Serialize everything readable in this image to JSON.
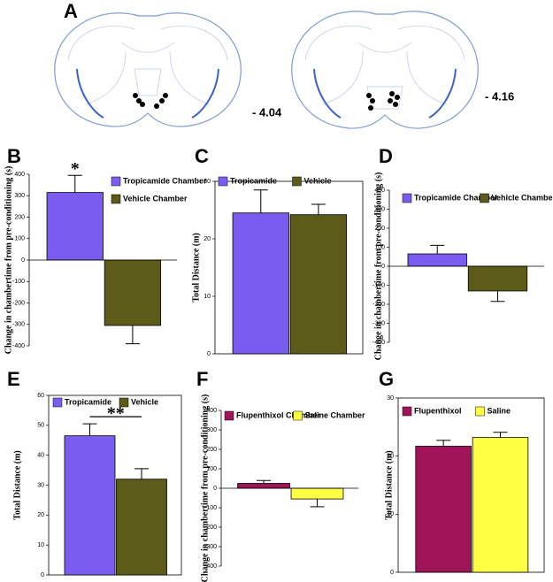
{
  "figure_a": {
    "label": "A",
    "sections": [
      "- 4.04",
      "- 4.16"
    ]
  },
  "chart_data": [
    {
      "type": "bar",
      "label": "B",
      "ylabel": "Change in chambertime from pre-conditioning (s)",
      "ylim": [
        -400,
        400
      ],
      "yticks": [
        -400,
        -300,
        -200,
        -100,
        0,
        100,
        200,
        300,
        400
      ],
      "annotation": "*",
      "series": [
        {
          "name": "Tropicamide Chamber",
          "color": "#7b5cf0",
          "values": [
            315
          ],
          "errors": [
            80
          ]
        },
        {
          "name": "Vehicle Chamber",
          "color": "#5c5b1a",
          "values": [
            -305
          ],
          "errors": [
            85
          ]
        }
      ]
    },
    {
      "type": "bar",
      "label": "C",
      "ylabel": "Total Distance (m)",
      "ylim": [
        0,
        30
      ],
      "yticks": [
        0,
        10,
        20,
        30
      ],
      "series": [
        {
          "name": "Tropicamide",
          "color": "#7b5cf0",
          "values": [
            24.5
          ],
          "errors": [
            4
          ]
        },
        {
          "name": "Vehicle",
          "color": "#5c5b1a",
          "values": [
            24.2
          ],
          "errors": [
            1.8
          ]
        }
      ]
    },
    {
      "type": "bar",
      "label": "D",
      "ylabel": "Change in chambertime from pre-conditioning (s)",
      "ylim": [
        -400,
        400
      ],
      "yticks": [
        -400,
        -300,
        -200,
        -100,
        0,
        100,
        200,
        300,
        400
      ],
      "series": [
        {
          "name": "Tropicamide Chamber",
          "color": "#7b5cf0",
          "values": [
            65
          ],
          "errors": [
            45
          ]
        },
        {
          "name": "Vehicle Chamber",
          "color": "#5c5b1a",
          "values": [
            -130
          ],
          "errors": [
            55
          ]
        }
      ]
    },
    {
      "type": "bar",
      "label": "E",
      "ylabel": "Total Distance (m)",
      "ylim": [
        0,
        60
      ],
      "yticks": [
        0,
        10,
        20,
        30,
        40,
        50,
        60
      ],
      "annotation": "**",
      "series": [
        {
          "name": "Tropicamide",
          "color": "#7b5cf0",
          "values": [
            46.5
          ],
          "errors": [
            4
          ]
        },
        {
          "name": "Vehicle",
          "color": "#5c5b1a",
          "values": [
            32
          ],
          "errors": [
            3.5
          ]
        }
      ]
    },
    {
      "type": "bar",
      "label": "F",
      "ylabel": "Change in chambertime from pre-conditioning (s)",
      "ylim": [
        -400,
        400
      ],
      "yticks": [
        -400,
        -300,
        -200,
        -100,
        0,
        100,
        200,
        300,
        400
      ],
      "series": [
        {
          "name": "Flupenthixol Chamber",
          "color": "#a0155a",
          "values": [
            25
          ],
          "errors": [
            15
          ]
        },
        {
          "name": "Saline Chamber",
          "color": "#ffff44",
          "values": [
            -55
          ],
          "errors": [
            40
          ]
        }
      ]
    },
    {
      "type": "bar",
      "label": "G",
      "ylabel": "Total Distance (m)",
      "ylim": [
        0,
        30
      ],
      "yticks": [
        0,
        10,
        20,
        30
      ],
      "series": [
        {
          "name": "Flupenthixol",
          "color": "#a0155a",
          "values": [
            21.7
          ],
          "errors": [
            1
          ]
        },
        {
          "name": "Saline",
          "color": "#ffff44",
          "values": [
            23.2
          ],
          "errors": [
            0.9
          ]
        }
      ]
    }
  ]
}
